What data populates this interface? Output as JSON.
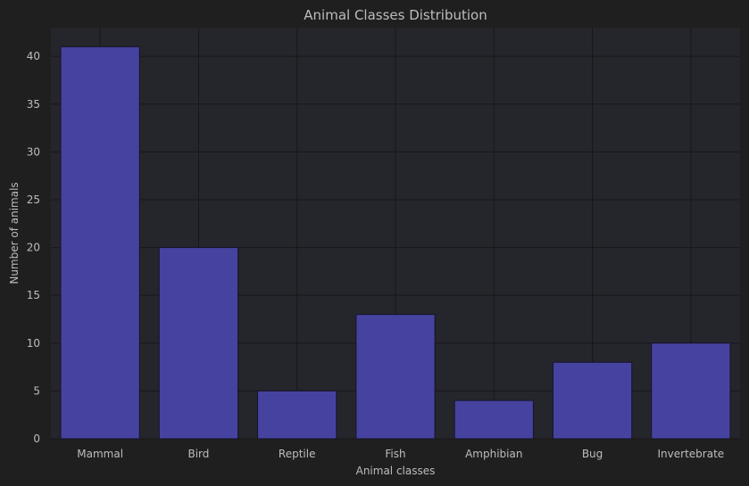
{
  "chart_data": {
    "type": "bar",
    "title": "Animal Classes Distribution",
    "xlabel": "Animal classes",
    "ylabel": "Number of animals",
    "categories": [
      "Mammal",
      "Bird",
      "Reptile",
      "Fish",
      "Amphibian",
      "Bug",
      "Invertebrate"
    ],
    "values": [
      41,
      20,
      5,
      13,
      4,
      8,
      10
    ],
    "ylim": [
      0,
      43
    ],
    "yticks": [
      0,
      5,
      10,
      15,
      20,
      25,
      30,
      35,
      40
    ],
    "grid": true,
    "bar_color": "#4643a0",
    "background_color": "#1f1f1f",
    "plot_background_color": "#25252c",
    "grid_color": "#17171b",
    "text_color": "#bdbdbd"
  }
}
